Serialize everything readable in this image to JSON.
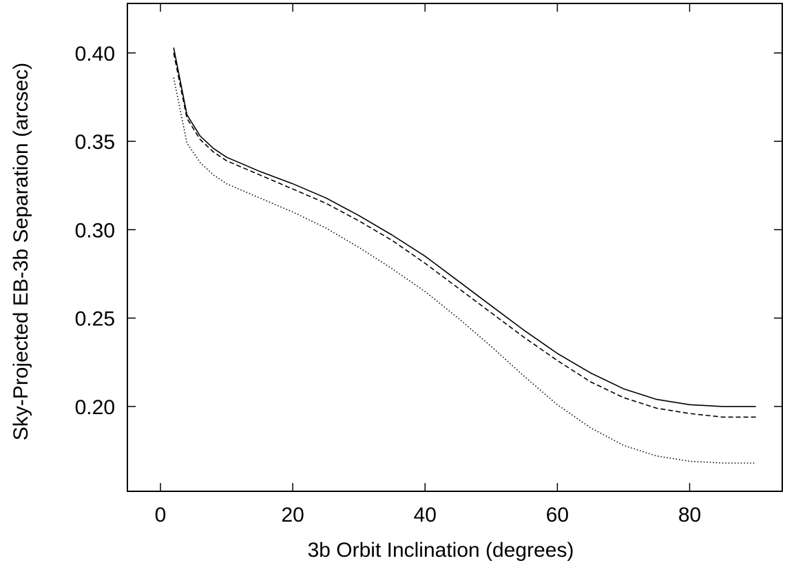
{
  "chart_data": {
    "type": "line",
    "title": "",
    "xlabel": "3b Orbit Inclination (degrees)",
    "ylabel": "Sky-Projected EB-3b Separation (arcsec)",
    "xlim": [
      -5,
      94
    ],
    "ylim": [
      0.152,
      0.428
    ],
    "xticks": [
      0,
      20,
      40,
      60,
      80
    ],
    "yticks": [
      0.2,
      0.25,
      0.3,
      0.35,
      0.4
    ],
    "xtick_labels": [
      "0",
      "20",
      "40",
      "60",
      "80"
    ],
    "ytick_labels": [
      "0.20",
      "0.25",
      "0.30",
      "0.35",
      "0.40"
    ],
    "grid": false,
    "legend": "none",
    "series": [
      {
        "style": "solid",
        "points": [
          [
            2,
            0.403
          ],
          [
            4,
            0.365
          ],
          [
            6,
            0.353
          ],
          [
            8,
            0.346
          ],
          [
            10,
            0.341
          ],
          [
            15,
            0.333
          ],
          [
            20,
            0.326
          ],
          [
            25,
            0.318
          ],
          [
            30,
            0.308
          ],
          [
            35,
            0.297
          ],
          [
            40,
            0.285
          ],
          [
            45,
            0.271
          ],
          [
            50,
            0.257
          ],
          [
            55,
            0.243
          ],
          [
            60,
            0.23
          ],
          [
            65,
            0.219
          ],
          [
            70,
            0.21
          ],
          [
            75,
            0.204
          ],
          [
            80,
            0.201
          ],
          [
            85,
            0.2
          ],
          [
            90,
            0.2
          ]
        ]
      },
      {
        "style": "dashed",
        "points": [
          [
            2,
            0.4
          ],
          [
            4,
            0.363
          ],
          [
            6,
            0.351
          ],
          [
            8,
            0.344
          ],
          [
            10,
            0.339
          ],
          [
            15,
            0.331
          ],
          [
            20,
            0.323
          ],
          [
            25,
            0.315
          ],
          [
            30,
            0.305
          ],
          [
            35,
            0.294
          ],
          [
            40,
            0.281
          ],
          [
            45,
            0.267
          ],
          [
            50,
            0.253
          ],
          [
            55,
            0.239
          ],
          [
            60,
            0.226
          ],
          [
            65,
            0.214
          ],
          [
            70,
            0.205
          ],
          [
            75,
            0.199
          ],
          [
            80,
            0.196
          ],
          [
            85,
            0.194
          ],
          [
            90,
            0.194
          ]
        ]
      },
      {
        "style": "dotted",
        "points": [
          [
            2,
            0.386
          ],
          [
            4,
            0.349
          ],
          [
            6,
            0.338
          ],
          [
            8,
            0.331
          ],
          [
            10,
            0.326
          ],
          [
            15,
            0.318
          ],
          [
            20,
            0.31
          ],
          [
            25,
            0.301
          ],
          [
            30,
            0.29
          ],
          [
            35,
            0.278
          ],
          [
            40,
            0.265
          ],
          [
            45,
            0.25
          ],
          [
            50,
            0.234
          ],
          [
            55,
            0.217
          ],
          [
            60,
            0.201
          ],
          [
            65,
            0.188
          ],
          [
            70,
            0.178
          ],
          [
            75,
            0.172
          ],
          [
            80,
            0.169
          ],
          [
            85,
            0.168
          ],
          [
            90,
            0.168
          ]
        ]
      }
    ]
  }
}
